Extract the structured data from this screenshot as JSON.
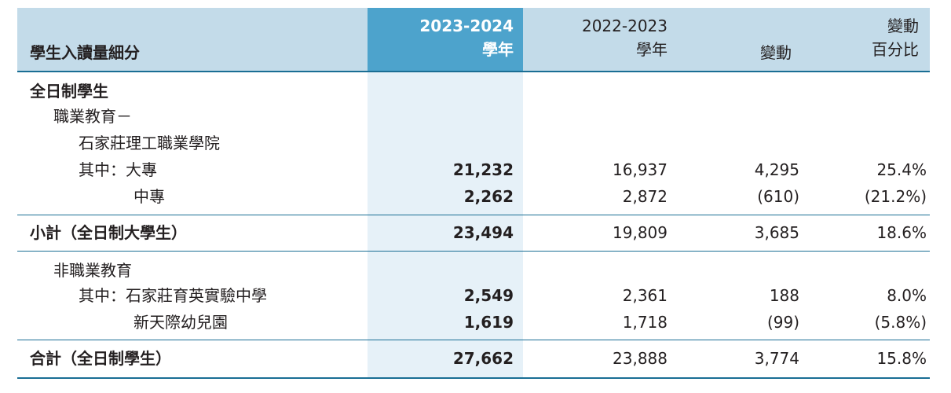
{
  "header": {
    "label": "學生入讀量細分",
    "col_current_line1": "2023-2024",
    "col_current_line2": "學年",
    "col_prev_line1": "2022-2023",
    "col_prev_line2": "學年",
    "col_change": "變動",
    "col_pct_line1": "變動",
    "col_pct_line2": "百分比"
  },
  "rows": [
    {
      "label": "全日制學生",
      "current": "",
      "previous": "",
      "change": "",
      "pct": ""
    },
    {
      "label": "職業教育－",
      "current": "",
      "previous": "",
      "change": "",
      "pct": ""
    },
    {
      "label": "石家莊理工職業學院",
      "current": "",
      "previous": "",
      "change": "",
      "pct": ""
    },
    {
      "label": "其中：大專",
      "current": "21,232",
      "previous": "16,937",
      "change": "4,295",
      "pct": "25.4%"
    },
    {
      "label": "中專",
      "current": "2,262",
      "previous": "2,872",
      "change": "(610)",
      "pct": "(21.2%)"
    },
    {
      "label": "小計（全日制大學生）",
      "current": "23,494",
      "previous": "19,809",
      "change": "3,685",
      "pct": "18.6%"
    },
    {
      "label": "非職業教育",
      "current": "",
      "previous": "",
      "change": "",
      "pct": ""
    },
    {
      "label": "其中：石家莊育英實驗中學",
      "current": "2,549",
      "previous": "2,361",
      "change": "188",
      "pct": "8.0%"
    },
    {
      "label": "新天際幼兒園",
      "current": "1,619",
      "previous": "1,718",
      "change": "(99)",
      "pct": "(5.8%)"
    },
    {
      "label": "合計（全日制學生）",
      "current": "27,662",
      "previous": "23,888",
      "change": "3,774",
      "pct": "15.8%"
    }
  ]
}
